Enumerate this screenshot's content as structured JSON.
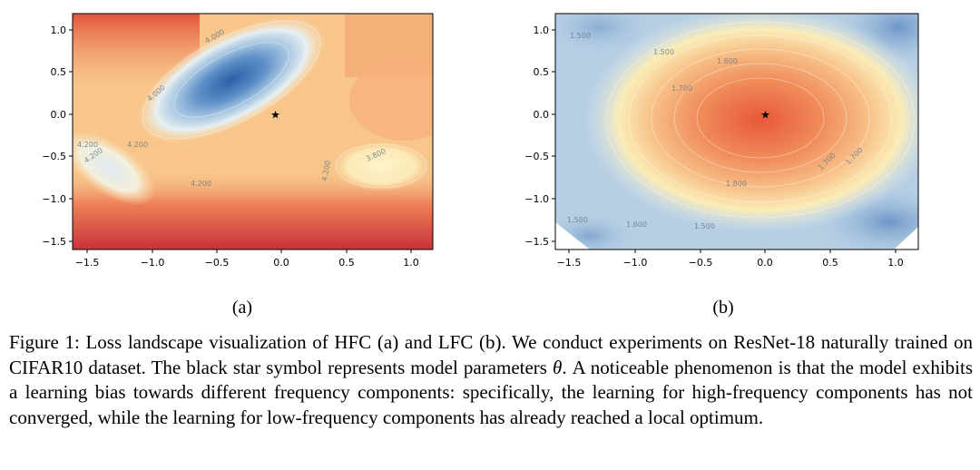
{
  "figure": {
    "subplots": [
      {
        "label": "(a)",
        "xticks": [
          "−1.5",
          "−1.0",
          "−0.5",
          "0.0",
          "0.5",
          "1.0"
        ],
        "yticks": [
          "1.0",
          "0.5",
          "0.0",
          "−0.5",
          "−1.0",
          "−1.5"
        ],
        "contour_labels": [
          "4.000",
          "4.000",
          "4.200",
          "4.200",
          "4.200",
          "3.800",
          "4.200",
          "4.200"
        ],
        "marker": "black-star"
      },
      {
        "label": "(b)",
        "xticks": [
          "−1.5",
          "−1.0",
          "−0.5",
          "0.0",
          "0.5",
          "1.0"
        ],
        "yticks": [
          "1.0",
          "0.5",
          "0.0",
          "−0.5",
          "−1.0",
          "−1.5"
        ],
        "contour_labels": [
          "1.500",
          "1.500",
          "1.600",
          "1.700",
          "1.700",
          "1.800",
          "1.700",
          "1.500",
          "1.600",
          "1.500"
        ],
        "marker": "black-star"
      }
    ]
  },
  "caption": {
    "text_before": "Figure 1: Loss landscape visualization of HFC (a) and LFC (b). We conduct experiments on ResNet-18 naturally trained on CIFAR10 dataset. The black star symbol represents model parameters ",
    "math": "θ",
    "text_after": ". A noticeable phenomenon is that the model exhibits a learning bias towards different frequency components: specifically, the learning for high-frequency components has not converged, while the learning for low-frequency components has already reached a local optimum."
  },
  "colors": {
    "cool_low": "#3a6eb5",
    "warm_high": "#d73027",
    "neutral": "#fbf4c6",
    "axis": "#000000"
  }
}
